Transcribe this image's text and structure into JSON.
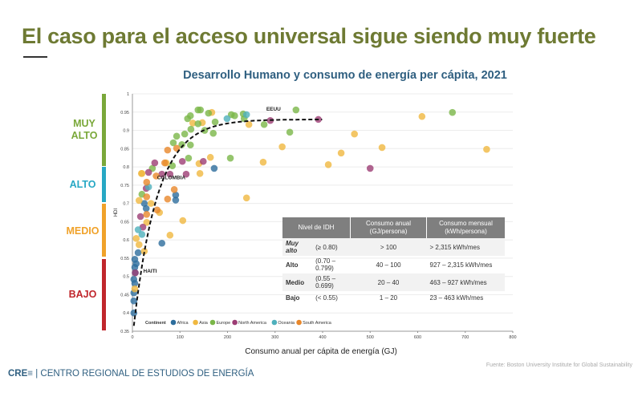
{
  "slide_title": "El caso para el acceso universal sigue siendo muy fuerte",
  "bands": [
    {
      "label": "MUY ALTO",
      "color": "#7aa83a"
    },
    {
      "label": "ALTO",
      "color": "#27a8c4"
    },
    {
      "label": "MEDIO",
      "color": "#f0a22a"
    },
    {
      "label": "BAJO",
      "color": "#c0262c"
    }
  ],
  "table": {
    "headers": [
      "Nivel de IDH",
      "Consumo anual (GJ/persona)",
      "Consumo mensual (kWh/persona)"
    ],
    "rows": [
      {
        "level": "Muy alto",
        "range": "(≥ 0.80)",
        "annual": "> 100",
        "monthly": "> 2,315 kWh/mes"
      },
      {
        "level": "Alto",
        "range": "(0.70 – 0.799)",
        "annual": "40 – 100",
        "monthly": "927 – 2,315 kWh/mes"
      },
      {
        "level": "Medio",
        "range": "(0.55 – 0.699)",
        "annual": "20 – 40",
        "monthly": "463 – 927 kWh/mes"
      },
      {
        "level": "Bajo",
        "range": "(< 0.55)",
        "annual": "1 – 20",
        "monthly": "23 – 463 kWh/mes"
      }
    ]
  },
  "footer": {
    "logo": "CRE≡",
    "org": "CENTRO REGIONAL DE ESTUDIOS DE ENERGÍA",
    "source": "Fuente: Boston University Institute for Global Sustainability"
  },
  "chart_data": {
    "type": "scatter",
    "title": "Desarrollo Humano y consumo de energía per cápita, 2021",
    "xlabel": "Consumo anual per cápita de energía (GJ)",
    "ylabel": "HDI",
    "xlim": [
      0,
      800
    ],
    "ylim": [
      0.35,
      1
    ],
    "xticks": [
      "0",
      "100",
      "200",
      "300",
      "400",
      "500",
      "600",
      "700",
      "800"
    ],
    "yticks": [
      "0.35",
      "0.4",
      "0.45",
      "0.5",
      "0.55",
      "0.6",
      "0.65",
      "0.7",
      "0.75",
      "0.8",
      "0.85",
      "0.9",
      "0.95",
      "1"
    ],
    "grid": "horizontal",
    "legend": {
      "title": "Continent",
      "placement": "bottom-left"
    },
    "series": [
      {
        "name": "Africa",
        "color": "#2d6d9c",
        "points": [
          [
            3,
            0.4
          ],
          [
            3,
            0.433
          ],
          [
            3,
            0.455
          ],
          [
            5,
            0.481
          ],
          [
            3,
            0.492
          ],
          [
            5,
            0.525
          ],
          [
            5,
            0.547
          ],
          [
            12,
            0.565
          ],
          [
            62,
            0.591
          ],
          [
            25,
            0.7
          ],
          [
            29,
            0.686
          ],
          [
            91,
            0.723
          ],
          [
            91,
            0.709
          ],
          [
            172,
            0.796
          ],
          [
            8,
            0.535
          ],
          [
            6,
            0.51
          ]
        ]
      },
      {
        "name": "Asia",
        "color": "#f0b840",
        "points": [
          [
            5,
            0.466
          ],
          [
            8,
            0.604
          ],
          [
            14,
            0.587
          ],
          [
            25,
            0.569
          ],
          [
            30,
            0.648
          ],
          [
            14,
            0.708
          ],
          [
            39,
            0.7
          ],
          [
            57,
            0.675
          ],
          [
            106,
            0.653
          ],
          [
            79,
            0.613
          ],
          [
            19,
            0.782
          ],
          [
            20,
            0.782
          ],
          [
            71,
            0.811
          ],
          [
            140,
            0.809
          ],
          [
            142,
            0.782
          ],
          [
            164,
            0.826
          ],
          [
            127,
            0.92
          ],
          [
            147,
            0.921
          ],
          [
            167,
            0.949
          ],
          [
            245,
            0.916
          ],
          [
            240,
            0.715
          ],
          [
            275,
            0.813
          ],
          [
            315,
            0.855
          ],
          [
            412,
            0.806
          ],
          [
            439,
            0.838
          ],
          [
            467,
            0.89
          ],
          [
            525,
            0.853
          ],
          [
            609,
            0.938
          ],
          [
            745,
            0.848
          ]
        ]
      },
      {
        "name": "Europe",
        "color": "#7ab648",
        "points": [
          [
            20,
            0.725
          ],
          [
            42,
            0.796
          ],
          [
            84,
            0.803
          ],
          [
            86,
            0.866
          ],
          [
            93,
            0.884
          ],
          [
            104,
            0.861
          ],
          [
            110,
            0.89
          ],
          [
            118,
            0.824
          ],
          [
            122,
            0.86
          ],
          [
            122,
            0.94
          ],
          [
            116,
            0.932
          ],
          [
            123,
            0.903
          ],
          [
            138,
            0.918
          ],
          [
            138,
            0.956
          ],
          [
            143,
            0.956
          ],
          [
            152,
            0.9
          ],
          [
            160,
            0.947
          ],
          [
            170,
            0.892
          ],
          [
            174,
            0.923
          ],
          [
            206,
            0.824
          ],
          [
            208,
            0.943
          ],
          [
            215,
            0.94
          ],
          [
            233,
            0.945
          ],
          [
            235,
            0.932
          ],
          [
            277,
            0.916
          ],
          [
            331,
            0.895
          ],
          [
            344,
            0.956
          ],
          [
            673,
            0.949
          ]
        ]
      },
      {
        "name": "North America",
        "color": "#9c3d74",
        "points": [
          [
            6,
            0.51
          ],
          [
            17,
            0.664
          ],
          [
            22,
            0.635
          ],
          [
            29,
            0.741
          ],
          [
            34,
            0.785
          ],
          [
            47,
            0.811
          ],
          [
            62,
            0.78
          ],
          [
            79,
            0.78
          ],
          [
            105,
            0.815
          ],
          [
            113,
            0.78
          ],
          [
            149,
            0.815
          ],
          [
            290,
            0.927
          ],
          [
            391,
            0.93
          ],
          [
            500,
            0.796
          ]
        ]
      },
      {
        "name": "Oceania",
        "color": "#4fb0bc",
        "points": [
          [
            12,
            0.628
          ],
          [
            20,
            0.615
          ],
          [
            34,
            0.745
          ],
          [
            199,
            0.932
          ],
          [
            240,
            0.943
          ]
        ]
      },
      {
        "name": "South America",
        "color": "#e8872a",
        "points": [
          [
            30,
            0.67
          ],
          [
            30,
            0.718
          ],
          [
            30,
            0.758
          ],
          [
            52,
            0.682
          ],
          [
            74,
            0.712
          ],
          [
            88,
            0.738
          ],
          [
            68,
            0.811
          ],
          [
            74,
            0.846
          ],
          [
            93,
            0.851
          ],
          [
            50,
            0.775
          ]
        ]
      }
    ],
    "trendline": {
      "style": "dashed",
      "color": "#111111"
    },
    "annotations": [
      {
        "text": "EEUU",
        "x": 290,
        "y": 0.927
      },
      {
        "text": "COLOMBIA",
        "x": 35,
        "y": 0.76
      },
      {
        "text": "HAITI",
        "x": 6,
        "y": 0.51
      }
    ]
  }
}
